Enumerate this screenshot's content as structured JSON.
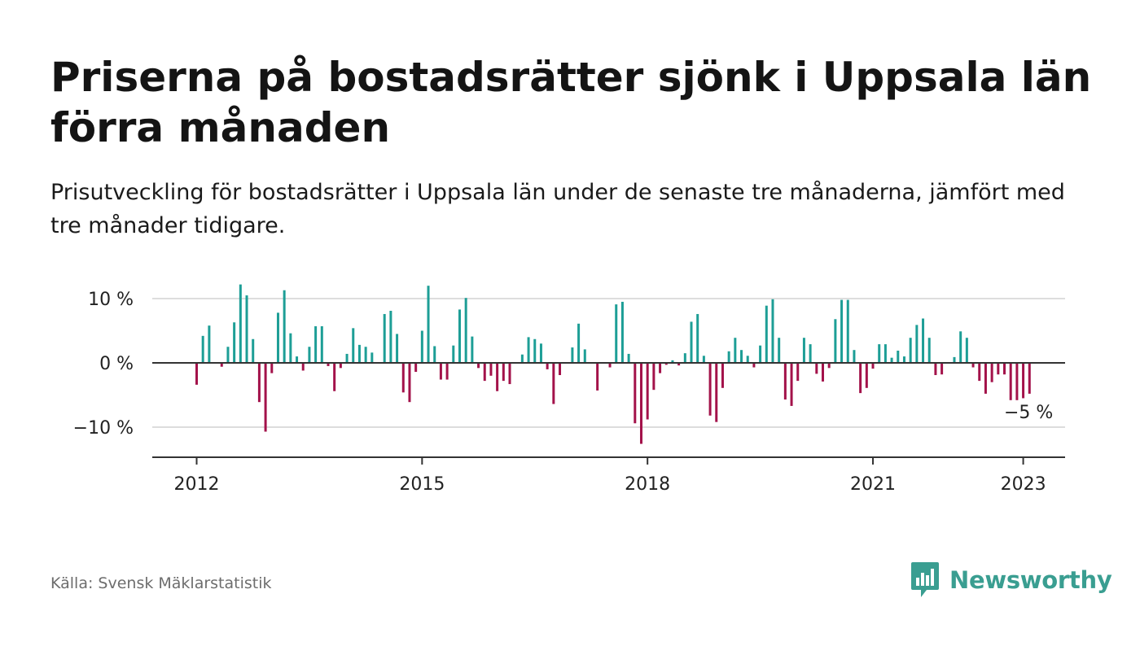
{
  "header": {
    "title": "Priserna på bostadsrätter sjönk i Uppsala län förra månaden",
    "subtitle": "Prisutveckling för bostadsrätter i Uppsala län under de senaste tre månaderna, jämfört med tre månader tidigare."
  },
  "footer": {
    "source": "Källa: Svensk Mäklarstatistik",
    "brand": "Newsworthy"
  },
  "colors": {
    "positive": "#1d9e96",
    "negative": "#a3124a",
    "grid": "#dddddd",
    "axis": "#333333",
    "brand": "#3a9e91"
  },
  "chart_data": {
    "type": "bar",
    "x_start": "2012-01",
    "x_ticks": [
      "2012",
      "2015",
      "2018",
      "2021",
      "2023"
    ],
    "y_ticks": [
      "10 %",
      "0 %",
      "−10 %"
    ],
    "y_tick_values": [
      10,
      0,
      -10
    ],
    "ylim": [
      -15,
      12.5
    ],
    "grid": true,
    "last_value_label": "−5 %",
    "values": [
      -3.4,
      4.2,
      5.8,
      0,
      -0.6,
      2.5,
      6.3,
      12.2,
      10.5,
      3.7,
      -6.1,
      -10.7,
      -1.6,
      7.8,
      11.3,
      4.6,
      1.0,
      -1.2,
      2.5,
      5.7,
      5.7,
      -0.5,
      -4.4,
      -0.8,
      1.4,
      5.4,
      2.8,
      2.5,
      1.6,
      0,
      7.6,
      8.1,
      4.5,
      -4.6,
      -6.1,
      -1.4,
      5.0,
      12.0,
      2.6,
      -2.6,
      -2.6,
      2.7,
      8.3,
      10.1,
      4.1,
      -0.8,
      -2.8,
      -2.0,
      -4.4,
      -2.8,
      -3.3,
      0,
      1.3,
      4.0,
      3.7,
      3.0,
      -1.0,
      -6.4,
      -1.9,
      0,
      2.4,
      6.1,
      2.1,
      0,
      -4.3,
      0,
      -0.7,
      9.1,
      9.5,
      1.4,
      -9.4,
      -12.6,
      -8.8,
      -4.2,
      -1.6,
      -0.3,
      0.4,
      -0.4,
      1.5,
      6.4,
      7.6,
      1.1,
      -8.2,
      -9.2,
      -3.9,
      1.8,
      3.9,
      2.0,
      1.1,
      -0.7,
      2.7,
      8.9,
      9.9,
      3.9,
      -5.7,
      -6.7,
      -2.8,
      3.9,
      2.9,
      -1.7,
      -2.9,
      -0.8,
      6.8,
      9.8,
      9.8,
      2.0,
      -4.7,
      -3.9,
      -0.9,
      2.9,
      2.9,
      0.8,
      1.9,
      1.0,
      3.9,
      5.9,
      6.9,
      3.9,
      -1.9,
      -1.8,
      0,
      0.9,
      4.9,
      3.9,
      -0.7,
      -2.8,
      -4.8,
      -3.0,
      -1.8,
      -1.8,
      -5.8,
      -5.8,
      -5.5,
      -4.8
    ]
  }
}
